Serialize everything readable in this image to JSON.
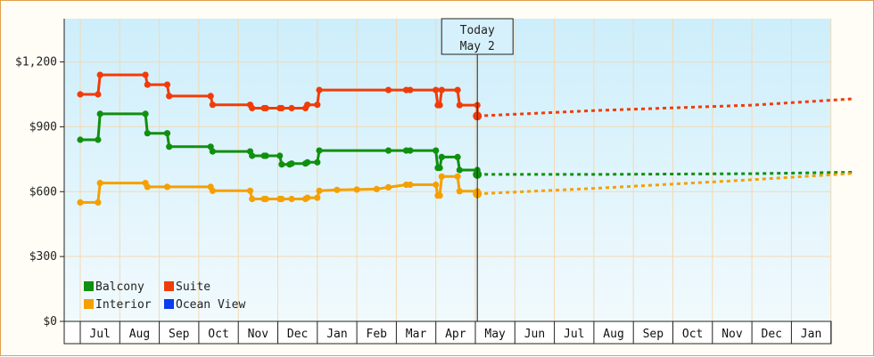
{
  "chart_data": {
    "type": "line",
    "y_tick_labels": [
      "$0",
      "$300",
      "$600",
      "$900",
      "$1,200"
    ],
    "y_ticks": [
      0,
      300,
      600,
      900,
      1200
    ],
    "ylim": [
      0,
      1200
    ],
    "x_tick_labels": [
      "Jul",
      "Aug",
      "Sep",
      "Oct",
      "Nov",
      "Dec",
      "Jan",
      "Feb",
      "Mar",
      "Apr",
      "May",
      "Jun",
      "Jul",
      "Aug",
      "Sep",
      "Oct",
      "Nov",
      "Dec",
      "Jan"
    ],
    "today_label": [
      "Today",
      "May 2"
    ],
    "today_month": 10.05,
    "grid": true,
    "legend_position": "bottom-left",
    "legend": [
      {
        "name": "Balcony",
        "color": "#109010"
      },
      {
        "name": "Suite",
        "color": "#f03c0a"
      },
      {
        "name": "Interior",
        "color": "#f5a000"
      },
      {
        "name": "Ocean View",
        "color": "#0a3cf0"
      }
    ],
    "series": [
      {
        "name": "Balcony",
        "color": "#109010",
        "history": [
          [
            0,
            840
          ],
          [
            0.45,
            840
          ],
          [
            0.5,
            960
          ],
          [
            1.65,
            960
          ],
          [
            1.7,
            870
          ],
          [
            2.2,
            870
          ],
          [
            2.25,
            808
          ],
          [
            3.3,
            808
          ],
          [
            3.35,
            786
          ],
          [
            4.3,
            786
          ],
          [
            4.35,
            766
          ],
          [
            4.65,
            766
          ],
          [
            4.7,
            766
          ],
          [
            5.05,
            766
          ],
          [
            5.1,
            726
          ],
          [
            5.3,
            726
          ],
          [
            5.35,
            730
          ],
          [
            5.7,
            730
          ],
          [
            5.75,
            736
          ],
          [
            6.0,
            736
          ],
          [
            6.05,
            790
          ],
          [
            7.8,
            790
          ],
          [
            8.25,
            790
          ],
          [
            8.35,
            790
          ],
          [
            9.0,
            790
          ],
          [
            9.05,
            710
          ],
          [
            9.1,
            710
          ],
          [
            9.15,
            760
          ],
          [
            9.55,
            760
          ],
          [
            9.6,
            700
          ],
          [
            10.05,
            700
          ],
          [
            10.05,
            680
          ]
        ],
        "forecast": [
          [
            10.05,
            680
          ],
          [
            13.0,
            680
          ],
          [
            17.0,
            683
          ],
          [
            19.6,
            690
          ]
        ]
      },
      {
        "name": "Suite",
        "color": "#f03c0a",
        "history": [
          [
            0,
            1050
          ],
          [
            0.45,
            1050
          ],
          [
            0.5,
            1140
          ],
          [
            1.65,
            1140
          ],
          [
            1.7,
            1095
          ],
          [
            2.2,
            1095
          ],
          [
            2.25,
            1042
          ],
          [
            3.3,
            1042
          ],
          [
            3.35,
            1002
          ],
          [
            4.3,
            1002
          ],
          [
            4.35,
            986
          ],
          [
            4.65,
            986
          ],
          [
            4.7,
            986
          ],
          [
            5.05,
            986
          ],
          [
            5.1,
            986
          ],
          [
            5.35,
            986
          ],
          [
            5.7,
            986
          ],
          [
            5.75,
            1002
          ],
          [
            6.0,
            1002
          ],
          [
            6.05,
            1070
          ],
          [
            7.8,
            1070
          ],
          [
            8.25,
            1070
          ],
          [
            8.35,
            1070
          ],
          [
            9.0,
            1070
          ],
          [
            9.05,
            1000
          ],
          [
            9.1,
            1000
          ],
          [
            9.15,
            1070
          ],
          [
            9.55,
            1070
          ],
          [
            9.6,
            1000
          ],
          [
            10.05,
            1000
          ],
          [
            10.05,
            950
          ]
        ],
        "forecast": [
          [
            10.05,
            950
          ],
          [
            13.0,
            975
          ],
          [
            17.0,
            1000
          ],
          [
            19.6,
            1030
          ]
        ]
      },
      {
        "name": "Interior",
        "color": "#f5a000",
        "history": [
          [
            0,
            550
          ],
          [
            0.45,
            550
          ],
          [
            0.5,
            640
          ],
          [
            1.65,
            640
          ],
          [
            1.7,
            622
          ],
          [
            2.2,
            622
          ],
          [
            3.3,
            622
          ],
          [
            3.35,
            604
          ],
          [
            4.3,
            604
          ],
          [
            4.35,
            566
          ],
          [
            4.65,
            566
          ],
          [
            4.7,
            566
          ],
          [
            5.05,
            566
          ],
          [
            5.1,
            566
          ],
          [
            5.35,
            566
          ],
          [
            5.7,
            566
          ],
          [
            5.75,
            572
          ],
          [
            6.0,
            572
          ],
          [
            6.05,
            604
          ],
          [
            6.5,
            608
          ],
          [
            7.0,
            610
          ],
          [
            7.5,
            612
          ],
          [
            7.8,
            620
          ],
          [
            8.25,
            632
          ],
          [
            8.35,
            632
          ],
          [
            9.0,
            632
          ],
          [
            9.05,
            582
          ],
          [
            9.1,
            582
          ],
          [
            9.15,
            670
          ],
          [
            9.55,
            670
          ],
          [
            9.6,
            602
          ],
          [
            10.05,
            602
          ],
          [
            10.05,
            590
          ]
        ],
        "forecast": [
          [
            10.05,
            590
          ],
          [
            13.0,
            615
          ],
          [
            17.0,
            655
          ],
          [
            19.6,
            685
          ]
        ]
      },
      {
        "name": "Ocean View",
        "color": "#0a3cf0",
        "history": [],
        "forecast": []
      }
    ]
  }
}
